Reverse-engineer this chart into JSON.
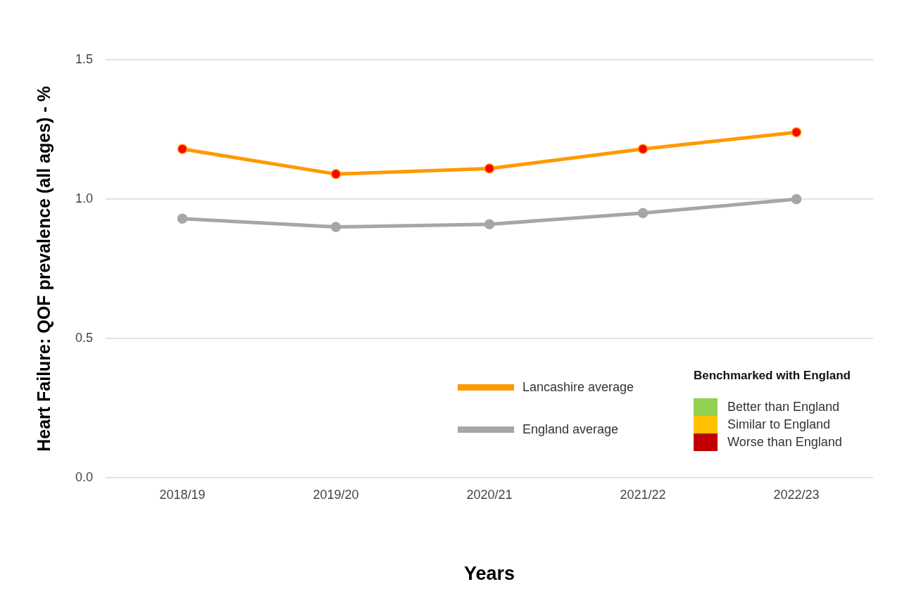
{
  "chart_data": {
    "type": "line",
    "xlabel": "Years",
    "ylabel": "Heart Failure: QOF prevalence (all ages) - %",
    "categories": [
      "2018/19",
      "2019/20",
      "2020/21",
      "2021/22",
      "2022/23"
    ],
    "series": [
      {
        "name": "Lancashire average",
        "color": "#ff9900",
        "colors": [
          "#ff0000",
          "#ff0000",
          "#ff0000",
          "#ff0000",
          "#ff0000"
        ],
        "values": [
          1.18,
          1.09,
          1.11,
          1.18,
          1.24
        ]
      },
      {
        "name": "England average",
        "color": "#a6a6a6",
        "values": [
          0.93,
          0.9,
          0.91,
          0.95,
          1.0
        ]
      }
    ],
    "ylim": [
      0,
      1.5
    ],
    "yticks": [
      {
        "value": 0,
        "label": "0.0"
      },
      {
        "value": 0.5,
        "label": "0.5"
      },
      {
        "value": 1,
        "label": "1.0"
      },
      {
        "value": 1.5,
        "label": "1.5"
      }
    ],
    "grid": "y",
    "legend": "bottom right",
    "marker": "circle",
    "line_style": "solid",
    "legend_title": "Benchmarked with England",
    "annotations": [
      "Better than England",
      "Similar to England",
      "Worse than England"
    ]
  }
}
